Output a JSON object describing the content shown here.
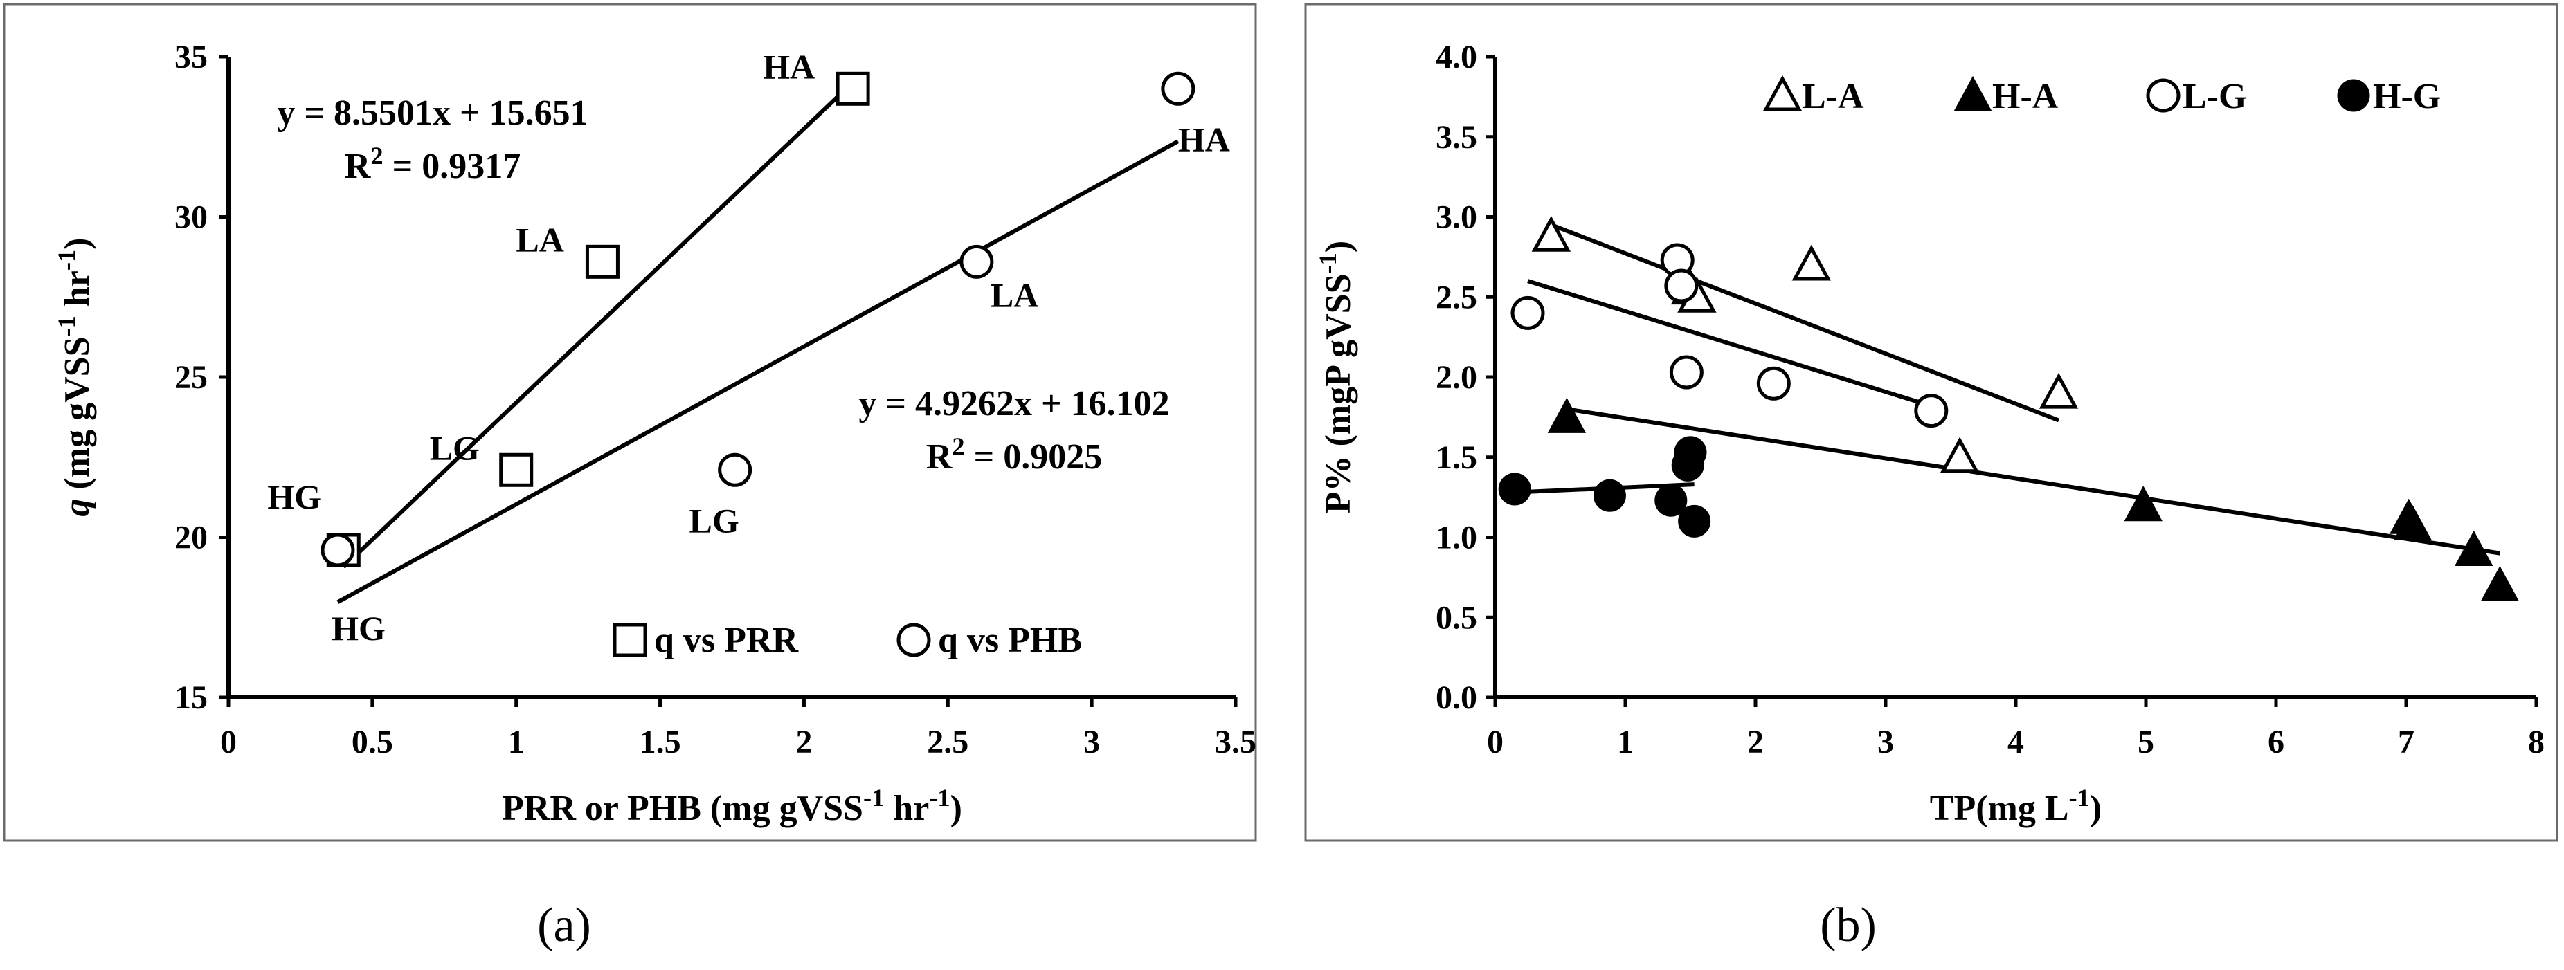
{
  "chart_data": [
    {
      "type": "scatter",
      "panel": "(a)",
      "xlabel": "PRR or PHB (mg gVSS⁻¹ hr⁻¹)",
      "ylabel": "q (mg gVSS⁻¹ hr⁻¹)",
      "xlim": [
        0,
        3.5
      ],
      "ylim": [
        15,
        35
      ],
      "xticks": [
        "0",
        "0.5",
        "1",
        "1.5",
        "2",
        "2.5",
        "3",
        "3.5"
      ],
      "yticks": [
        "15",
        "20",
        "25",
        "30",
        "35"
      ],
      "legend": [
        "q vs PRR",
        "q vs PHB"
      ],
      "legend_position": "bottom-right",
      "grid": false,
      "series": [
        {
          "name": "q vs PRR",
          "marker": "open-square",
          "points": [
            {
              "x": 0.4,
              "y": 19.6,
              "label": "HG"
            },
            {
              "x": 1.0,
              "y": 22.1,
              "label": "LG"
            },
            {
              "x": 1.3,
              "y": 28.6,
              "label": "LA"
            },
            {
              "x": 2.17,
              "y": 34.0,
              "label": "HA"
            }
          ],
          "trendline": {
            "equation": "y = 8.5501x + 15.651",
            "r2": "R² = 0.9317",
            "slope": 8.5501,
            "intercept": 15.651,
            "x_range": [
              0.4,
              2.17
            ]
          }
        },
        {
          "name": "q vs PHB",
          "marker": "open-circle",
          "points": [
            {
              "x": 0.38,
              "y": 19.6,
              "label": "HG"
            },
            {
              "x": 1.76,
              "y": 22.1,
              "label": "LG"
            },
            {
              "x": 2.6,
              "y": 28.6,
              "label": "LA"
            },
            {
              "x": 3.3,
              "y": 34.0,
              "label": "HA"
            }
          ],
          "trendline": {
            "equation": "y = 4.9262x + 16.102",
            "r2": "R² = 0.9025",
            "slope": 4.9262,
            "intercept": 16.102,
            "x_range": [
              0.38,
              3.3
            ]
          }
        }
      ]
    },
    {
      "type": "scatter",
      "panel": "(b)",
      "xlabel": "TP(mg L⁻¹)",
      "ylabel": "P% (mgP gVSS⁻¹)",
      "xlim": [
        0,
        8
      ],
      "ylim": [
        0,
        4
      ],
      "xticks": [
        "0",
        "1",
        "2",
        "3",
        "4",
        "5",
        "6",
        "7",
        "8"
      ],
      "yticks": [
        "0.0",
        "0.5",
        "1.0",
        "1.5",
        "2.0",
        "2.5",
        "3.0",
        "3.5",
        "4.0"
      ],
      "legend": [
        "L-A",
        "H-A",
        "L-G",
        "H-G"
      ],
      "legend_position": "top",
      "grid": false,
      "series": [
        {
          "name": "L-A",
          "marker": "open-triangle",
          "points": [
            [
              0.43,
              2.88
            ],
            [
              1.5,
              2.55
            ],
            [
              1.55,
              2.5
            ],
            [
              2.43,
              2.7
            ],
            [
              3.57,
              1.5
            ],
            [
              4.33,
              1.9
            ]
          ],
          "trendline": {
            "x_range": [
              0.4,
              4.33
            ],
            "y_range": [
              2.96,
              1.73
            ]
          }
        },
        {
          "name": "H-A",
          "marker": "filled-triangle",
          "points": [
            [
              0.55,
              1.75
            ],
            [
              4.98,
              1.2
            ],
            [
              7.02,
              1.12
            ],
            [
              7.05,
              1.08
            ],
            [
              7.52,
              0.92
            ],
            [
              7.72,
              0.7
            ]
          ],
          "trendline": {
            "x_range": [
              0.55,
              7.72
            ],
            "y_range": [
              1.8,
              0.9
            ]
          }
        },
        {
          "name": "L-G",
          "marker": "open-circle",
          "points": [
            [
              0.25,
              2.4
            ],
            [
              1.4,
              2.73
            ],
            [
              1.43,
              2.57
            ],
            [
              1.47,
              2.03
            ],
            [
              2.14,
              1.96
            ],
            [
              3.35,
              1.79
            ]
          ],
          "trendline": {
            "x_range": [
              0.25,
              3.35
            ],
            "y_range": [
              2.6,
              1.82
            ]
          }
        },
        {
          "name": "H-G",
          "marker": "filled-circle",
          "points": [
            [
              0.15,
              1.3
            ],
            [
              0.88,
              1.26
            ],
            [
              1.35,
              1.23
            ],
            [
              1.48,
              1.45
            ],
            [
              1.5,
              1.53
            ],
            [
              1.53,
              1.1
            ]
          ],
          "trendline": {
            "x_range": [
              0.15,
              1.53
            ],
            "y_range": [
              1.28,
              1.33
            ]
          }
        }
      ]
    }
  ],
  "captions": [
    "(a)",
    "(b)"
  ]
}
